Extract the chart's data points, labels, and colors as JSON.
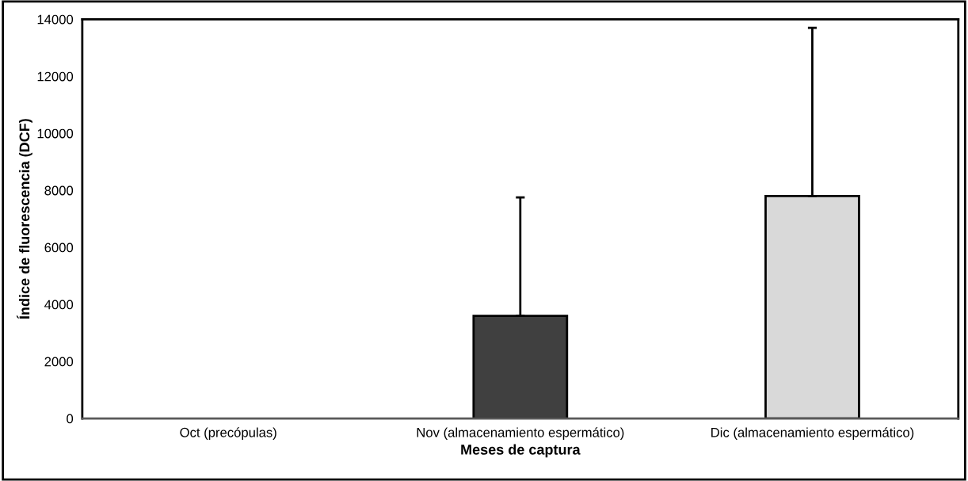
{
  "chart_data": {
    "type": "bar",
    "xlabel": "Meses de captura",
    "ylabel": "Índice de fluorescencia (DCF)",
    "categories": [
      "Oct (precópulas)",
      "Nov (almacenamiento espermático)",
      "Dic (almacenamiento espermático)"
    ],
    "values": [
      null,
      3600,
      7800
    ],
    "colors": [
      "#404040",
      "#404040",
      "#d9d9d9"
    ],
    "errors": [
      null,
      [
        3600,
        7750
      ],
      [
        7800,
        13700
      ]
    ],
    "ylim": [
      0,
      14000
    ],
    "yticks": [
      0,
      2000,
      4000,
      6000,
      8000,
      10000,
      12000,
      14000
    ],
    "grid": false,
    "legend": false
  }
}
